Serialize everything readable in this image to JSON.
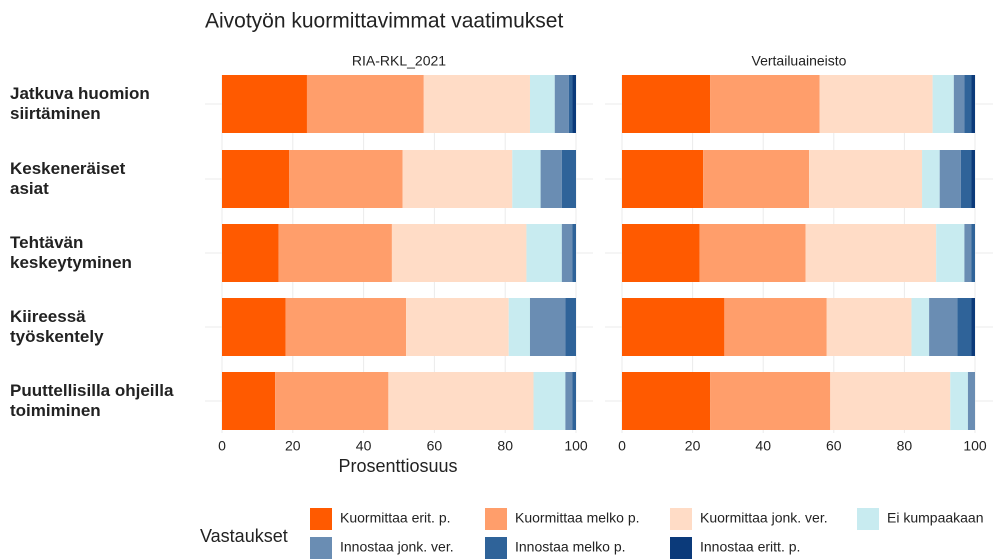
{
  "chart_data": {
    "type": "bar",
    "orientation": "horizontal",
    "stacked": true,
    "title": "Aivotyön kuormittavimmat vaatimukset",
    "x_label": "Prosenttiosuus",
    "legend_title": "Vastaukset",
    "panels": [
      "RIA-RKL_2021",
      "Vertailuaineisto"
    ],
    "categories": [
      "Jatkuva huomion\nsiirtäminen",
      "Keskeneräiset\nasiat",
      "Tehtävän\nkeskeytyminen",
      "Kiireessä\ntyöskentely",
      "Puuttellisilla ohjeilla\ntoimiminen"
    ],
    "xlim": [
      0,
      100
    ],
    "xticks": [
      0,
      20,
      40,
      60,
      80,
      100
    ],
    "grid": true,
    "series": [
      {
        "name": "Kuormittaa erit. p.",
        "color": "#ff5a00",
        "values": [
          [
            24,
            19,
            16,
            18,
            15
          ],
          [
            25,
            23,
            22,
            29,
            25
          ]
        ]
      },
      {
        "name": "Kuormittaa melko p.",
        "color": "#ff9e6b",
        "values": [
          [
            33,
            32,
            32,
            34,
            32
          ],
          [
            31,
            30,
            30,
            29,
            34
          ]
        ]
      },
      {
        "name": "Kuormittaa jonk. ver.",
        "color": "#ffdcc6",
        "values": [
          [
            30,
            31,
            38,
            29,
            41
          ],
          [
            32,
            32,
            37,
            24,
            34
          ]
        ]
      },
      {
        "name": "Ei kumpaakaan",
        "color": "#c8ebf0",
        "values": [
          [
            7,
            8,
            10,
            6,
            9
          ],
          [
            6,
            5,
            8,
            5,
            5
          ]
        ]
      },
      {
        "name": "Innostaa jonk. ver.",
        "color": "#6a8db3",
        "values": [
          [
            4,
            6,
            3,
            10,
            2
          ],
          [
            3,
            6,
            2,
            8,
            2
          ]
        ]
      },
      {
        "name": "Innostaa melko p.",
        "color": "#2f6399",
        "values": [
          [
            1,
            4,
            1,
            3,
            1
          ],
          [
            2,
            3,
            1,
            4,
            0
          ]
        ]
      },
      {
        "name": "Innostaa eritt. p.",
        "color": "#0b3a7a",
        "values": [
          [
            1,
            0,
            0,
            0,
            0
          ],
          [
            1,
            1,
            0,
            1,
            0
          ]
        ]
      }
    ]
  }
}
